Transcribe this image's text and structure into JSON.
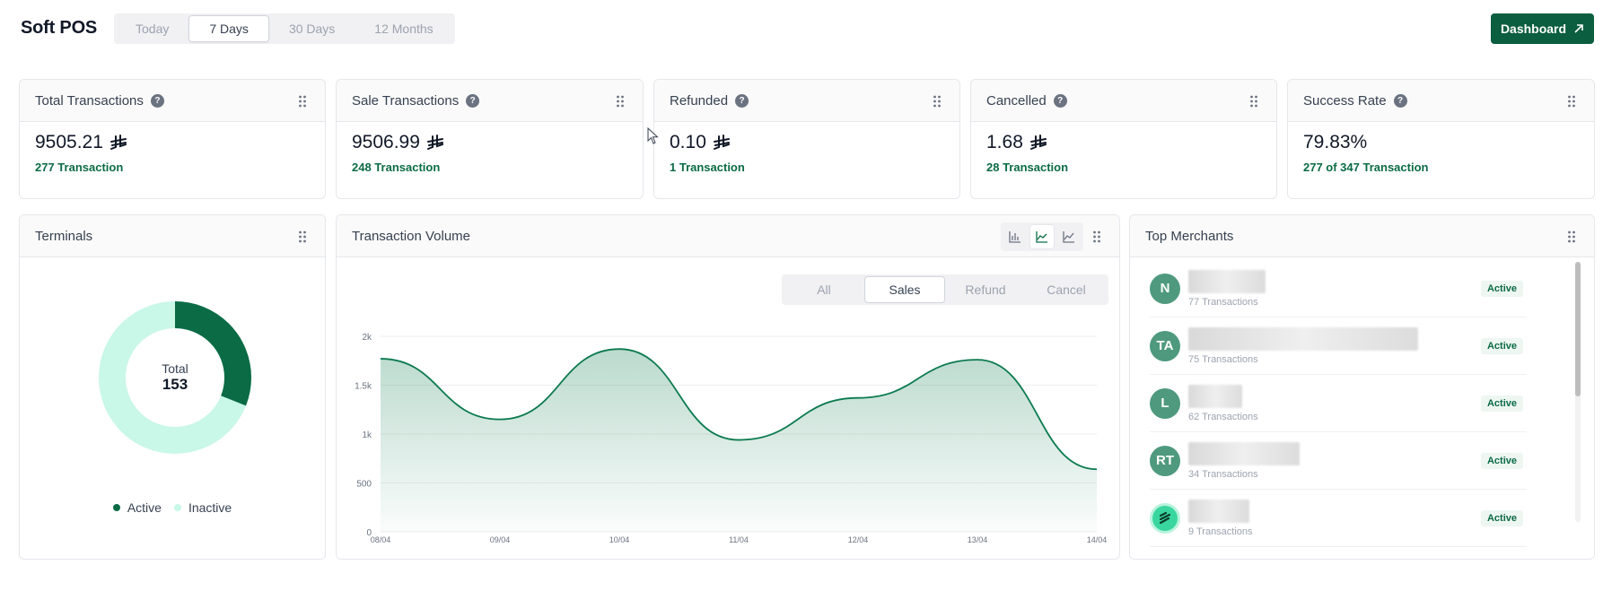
{
  "header": {
    "app_title": "Soft POS",
    "range_tabs": [
      "Today",
      "7 Days",
      "30 Days",
      "12 Months"
    ],
    "active_range": "7 Days",
    "dashboard_button": "Dashboard"
  },
  "stats": [
    {
      "title": "Total Transactions",
      "value": "9505.21",
      "currency": "SAR-symbol",
      "sub": "277 Transaction"
    },
    {
      "title": "Sale Transactions",
      "value": "9506.99",
      "currency": "SAR-symbol",
      "sub": "248 Transaction"
    },
    {
      "title": "Refunded",
      "value": "0.10",
      "currency": "SAR-symbol",
      "sub": "1 Transaction"
    },
    {
      "title": "Cancelled",
      "value": "1.68",
      "currency": "SAR-symbol",
      "sub": "28 Transaction"
    },
    {
      "title": "Success Rate",
      "value": "79.83%",
      "currency": "",
      "sub": "277 of 347 Transaction"
    }
  ],
  "terminals": {
    "title": "Terminals",
    "total_label": "Total",
    "total_value": "153",
    "active_fraction": 0.31,
    "legend": [
      {
        "label": "Active",
        "color": "#0b6b45"
      },
      {
        "label": "Inactive",
        "color": "#c9f7e8"
      }
    ]
  },
  "volume": {
    "title": "Transaction Volume",
    "chart_types": [
      "bar-chart-icon",
      "area-chart-icon",
      "line-chart-icon"
    ],
    "active_chart_type": "area-chart-icon",
    "filters": [
      "All",
      "Sales",
      "Refund",
      "Cancel"
    ],
    "active_filter": "Sales",
    "chart_data": {
      "type": "area",
      "categories": [
        "08/04",
        "09/04",
        "10/04",
        "11/04",
        "12/04",
        "13/04",
        "14/04"
      ],
      "series": [
        {
          "values": [
            1770,
            1150,
            1870,
            940,
            1370,
            1760,
            640
          ]
        }
      ],
      "y_ticks": [
        "0",
        "500",
        "1k",
        "1.5k",
        "2k"
      ],
      "ylim": [
        0,
        2000
      ],
      "grid": true,
      "color": "#0b7a4e"
    }
  },
  "merchants": {
    "title": "Top Merchants",
    "items": [
      {
        "initials": "N",
        "tx": "77 Transactions",
        "status": "Active",
        "logo": false
      },
      {
        "initials": "TA",
        "tx": "75 Transactions",
        "status": "Active",
        "logo": false
      },
      {
        "initials": "L",
        "tx": "62 Transactions",
        "status": "Active",
        "logo": false
      },
      {
        "initials": "RT",
        "tx": "34 Transactions",
        "status": "Active",
        "logo": false
      },
      {
        "initials": "",
        "tx": "9 Transactions",
        "status": "Active",
        "logo": true
      }
    ]
  },
  "colors": {
    "brand": "#0b5e3f",
    "accent": "#0b6b45"
  }
}
